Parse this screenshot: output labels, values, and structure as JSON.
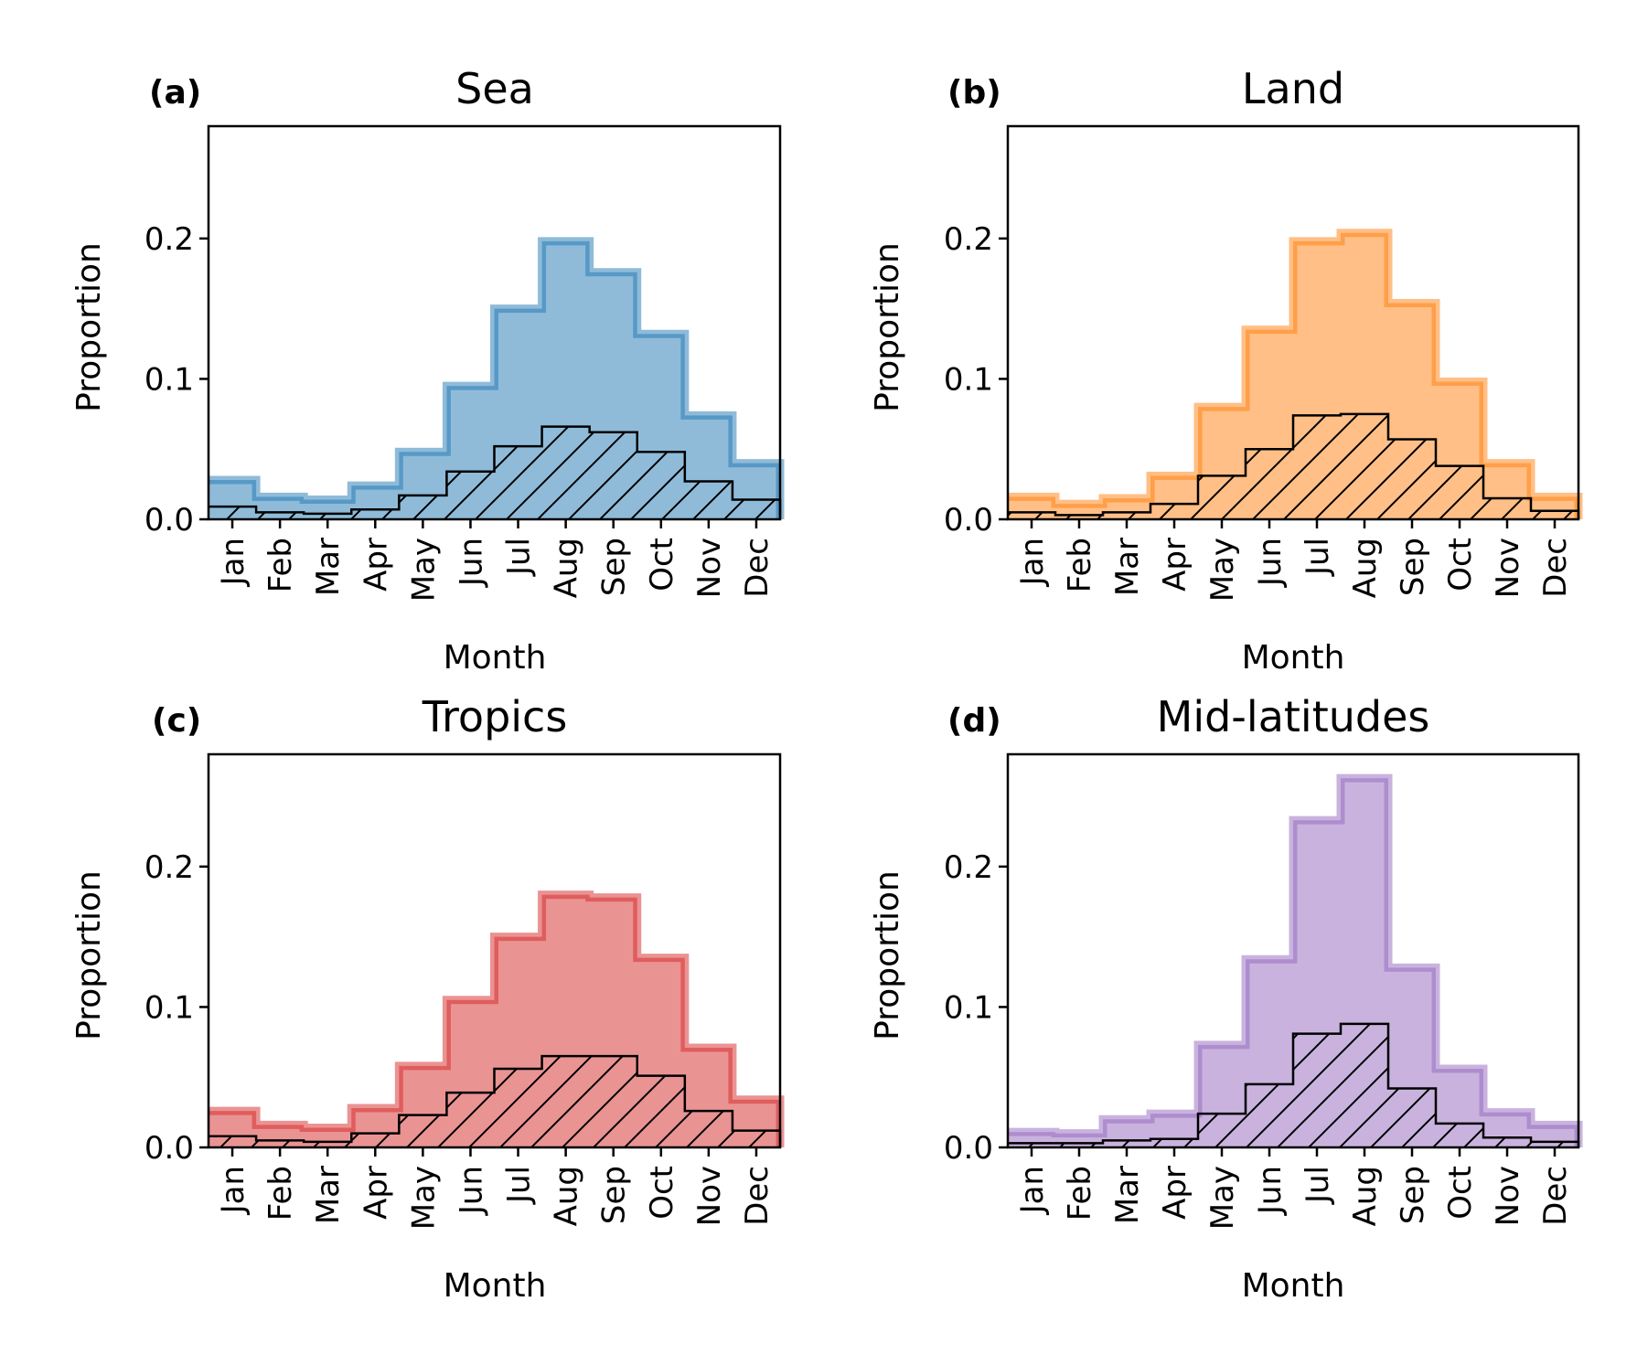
{
  "chart_data": [
    {
      "panel_letter": "(a)",
      "title": "Sea",
      "type": "bar",
      "style": "step-histogram",
      "xlabel": "Month",
      "ylabel": "Proportion",
      "ylim": [
        0,
        0.28
      ],
      "yticks": [
        "0.0",
        "0.1",
        "0.2"
      ],
      "categories": [
        "Jan",
        "Feb",
        "Mar",
        "Apr",
        "May",
        "Jun",
        "Jul",
        "Aug",
        "Sep",
        "Oct",
        "Nov",
        "Dec"
      ],
      "color": "#1f77b4",
      "series": [
        {
          "style": "filled",
          "values": [
            0.028,
            0.016,
            0.014,
            0.024,
            0.048,
            0.095,
            0.15,
            0.198,
            0.176,
            0.132,
            0.074,
            0.04
          ]
        },
        {
          "style": "hatched",
          "values": [
            0.009,
            0.005,
            0.004,
            0.007,
            0.017,
            0.034,
            0.052,
            0.066,
            0.062,
            0.048,
            0.027,
            0.014
          ]
        }
      ]
    },
    {
      "panel_letter": "(b)",
      "title": "Land",
      "type": "bar",
      "style": "step-histogram",
      "xlabel": "Month",
      "ylabel": "Proportion",
      "ylim": [
        0,
        0.28
      ],
      "yticks": [
        "0.0",
        "0.1",
        "0.2"
      ],
      "categories": [
        "Jan",
        "Feb",
        "Mar",
        "Apr",
        "May",
        "Jun",
        "Jul",
        "Aug",
        "Sep",
        "Oct",
        "Nov",
        "Dec"
      ],
      "color": "#ff7f0e",
      "series": [
        {
          "style": "filled",
          "values": [
            0.016,
            0.011,
            0.015,
            0.031,
            0.08,
            0.135,
            0.198,
            0.204,
            0.154,
            0.098,
            0.04,
            0.016
          ]
        },
        {
          "style": "hatched",
          "values": [
            0.005,
            0.003,
            0.005,
            0.011,
            0.031,
            0.05,
            0.074,
            0.075,
            0.057,
            0.038,
            0.015,
            0.006
          ]
        }
      ]
    },
    {
      "panel_letter": "(c)",
      "title": "Tropics",
      "type": "bar",
      "style": "step-histogram",
      "xlabel": "Month",
      "ylabel": "Proportion",
      "ylim": [
        0,
        0.28
      ],
      "yticks": [
        "0.0",
        "0.1",
        "0.2"
      ],
      "categories": [
        "Jan",
        "Feb",
        "Mar",
        "Apr",
        "May",
        "Jun",
        "Jul",
        "Aug",
        "Sep",
        "Oct",
        "Nov",
        "Dec"
      ],
      "color": "#d62728",
      "series": [
        {
          "style": "filled",
          "values": [
            0.026,
            0.016,
            0.014,
            0.028,
            0.058,
            0.105,
            0.15,
            0.18,
            0.178,
            0.135,
            0.071,
            0.034
          ]
        },
        {
          "style": "hatched",
          "values": [
            0.008,
            0.005,
            0.004,
            0.01,
            0.023,
            0.039,
            0.056,
            0.065,
            0.065,
            0.051,
            0.026,
            0.012
          ]
        }
      ]
    },
    {
      "panel_letter": "(d)",
      "title": "Mid-latitudes",
      "type": "bar",
      "style": "step-histogram",
      "xlabel": "Month",
      "ylabel": "Proportion",
      "ylim": [
        0,
        0.28
      ],
      "yticks": [
        "0.0",
        "0.1",
        "0.2"
      ],
      "categories": [
        "Jan",
        "Feb",
        "Mar",
        "Apr",
        "May",
        "Jun",
        "Jul",
        "Aug",
        "Sep",
        "Oct",
        "Nov",
        "Dec"
      ],
      "color": "#9467bd",
      "series": [
        {
          "style": "filled",
          "values": [
            0.011,
            0.01,
            0.02,
            0.024,
            0.073,
            0.134,
            0.233,
            0.263,
            0.128,
            0.056,
            0.025,
            0.016
          ]
        },
        {
          "style": "hatched",
          "values": [
            0.003,
            0.003,
            0.005,
            0.006,
            0.024,
            0.045,
            0.081,
            0.088,
            0.042,
            0.017,
            0.007,
            0.004
          ]
        }
      ]
    }
  ]
}
